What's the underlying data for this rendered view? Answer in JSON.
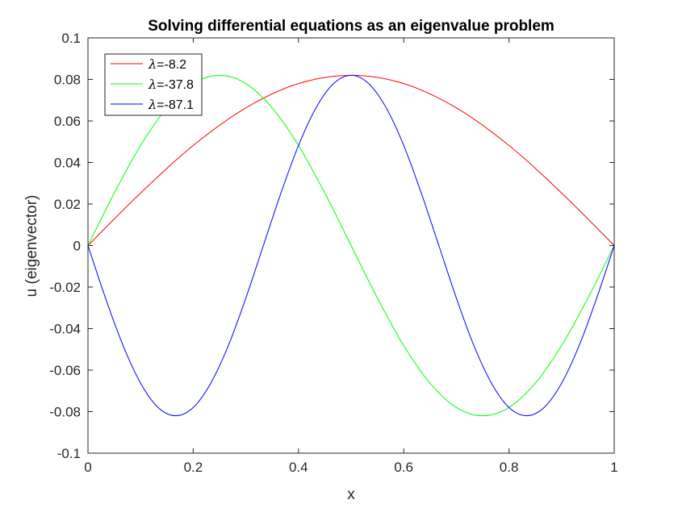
{
  "chart_data": {
    "type": "line",
    "title": "Solving differential equations as an eigenvalue problem",
    "xlabel": "x",
    "ylabel": "u (eigenvector)",
    "xlim": [
      0,
      1
    ],
    "ylim": [
      -0.1,
      0.1
    ],
    "x_ticks": [
      0,
      0.2,
      0.4,
      0.6,
      0.8,
      1
    ],
    "x_tick_labels": [
      "0",
      "0.2",
      "0.4",
      "0.6",
      "0.8",
      "1"
    ],
    "y_ticks": [
      -0.1,
      -0.08,
      -0.06,
      -0.04,
      -0.02,
      0,
      0.02,
      0.04,
      0.06,
      0.08,
      0.1
    ],
    "y_tick_labels": [
      "-0.1",
      "-0.08",
      "-0.06",
      "-0.04",
      "-0.02",
      "0",
      "0.02",
      "0.04",
      "0.06",
      "0.08",
      "0.1"
    ],
    "grid": false,
    "legend_position": "top-left",
    "legend_symbol": "λ",
    "series": [
      {
        "name": "=-8.2",
        "color": "#ff0000",
        "x": [
          0,
          0.1,
          0.2,
          0.3,
          0.4,
          0.5,
          0.6,
          0.7,
          0.8,
          0.9,
          1
        ],
        "y": [
          0,
          0.0253,
          0.0482,
          0.0663,
          0.078,
          0.082,
          0.078,
          0.0663,
          0.0482,
          0.0253,
          0
        ]
      },
      {
        "name": "=-37.8",
        "color": "#00ff00",
        "x": [
          0,
          0.05,
          0.1,
          0.15,
          0.2,
          0.25,
          0.3,
          0.35,
          0.4,
          0.45,
          0.5,
          0.55,
          0.6,
          0.65,
          0.7,
          0.75,
          0.8,
          0.85,
          0.9,
          0.95,
          1
        ],
        "y": [
          0,
          0.0253,
          0.0482,
          0.0663,
          0.078,
          0.082,
          0.078,
          0.0663,
          0.0482,
          0.0253,
          0,
          -0.0253,
          -0.0482,
          -0.0663,
          -0.078,
          -0.082,
          -0.078,
          -0.0663,
          -0.0482,
          -0.0253,
          0
        ]
      },
      {
        "name": "=-87.1",
        "color": "#0000ff",
        "x": [
          0,
          0.0333,
          0.0667,
          0.1,
          0.1333,
          0.1667,
          0.2,
          0.2333,
          0.2667,
          0.3,
          0.3333,
          0.3667,
          0.4,
          0.4333,
          0.4667,
          0.5,
          0.5333,
          0.5667,
          0.6,
          0.6333,
          0.6667,
          0.7,
          0.7333,
          0.7667,
          0.8,
          0.8333,
          0.8667,
          0.9,
          0.9333,
          0.9667,
          1
        ],
        "y": [
          0,
          -0.0253,
          -0.0482,
          -0.0663,
          -0.078,
          -0.082,
          -0.078,
          -0.0663,
          -0.0482,
          -0.0253,
          0,
          0.0253,
          0.0482,
          0.0663,
          0.078,
          0.082,
          0.078,
          0.0663,
          0.0482,
          0.0253,
          0,
          -0.0253,
          -0.0482,
          -0.0663,
          -0.078,
          -0.082,
          -0.078,
          -0.0663,
          -0.0482,
          -0.0253,
          0
        ]
      }
    ]
  }
}
